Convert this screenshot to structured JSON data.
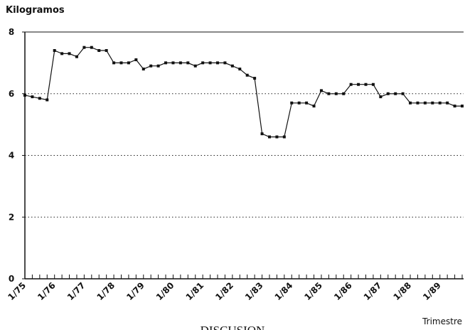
{
  "chart_data": {
    "type": "line",
    "title": "Kilogramos",
    "x_label": "Trimestre",
    "footer": "DISCUSION",
    "categories": [
      "1/75",
      null,
      null,
      null,
      "1/76",
      null,
      null,
      null,
      "1/77",
      null,
      null,
      null,
      "1/78",
      null,
      null,
      null,
      "1/79",
      null,
      null,
      null,
      "1/80",
      null,
      null,
      null,
      "1/81",
      null,
      null,
      null,
      "1/82",
      null,
      null,
      null,
      "1/83",
      null,
      null,
      null,
      "1/84",
      null,
      null,
      null,
      "1/85",
      null,
      null,
      null,
      "1/86",
      null,
      null,
      null,
      "1/87",
      null,
      null,
      null,
      "1/88",
      null,
      null,
      null,
      "1/89",
      null,
      null,
      null
    ],
    "series": [
      {
        "color": "#111111",
        "values": [
          5.95,
          5.9,
          5.85,
          5.8,
          7.4,
          7.3,
          7.3,
          7.2,
          7.5,
          7.5,
          7.4,
          7.4,
          7.0,
          7.0,
          7.0,
          7.1,
          6.8,
          6.9,
          6.9,
          7.0,
          7.0,
          7.0,
          7.0,
          6.9,
          7.0,
          7.0,
          7.0,
          7.0,
          6.9,
          6.8,
          6.6,
          6.5,
          4.7,
          4.6,
          4.6,
          4.6,
          5.7,
          5.7,
          5.7,
          5.6,
          6.1,
          6.0,
          6.0,
          6.0,
          6.3,
          6.3,
          6.3,
          6.3,
          5.9,
          6.0,
          6.0,
          6.0,
          5.7,
          5.7,
          5.7,
          5.7,
          5.7,
          5.7,
          5.6,
          5.6
        ]
      }
    ],
    "ylim": [
      0,
      8
    ],
    "yticks": [
      0,
      2,
      4,
      6,
      8
    ],
    "grid": true
  }
}
